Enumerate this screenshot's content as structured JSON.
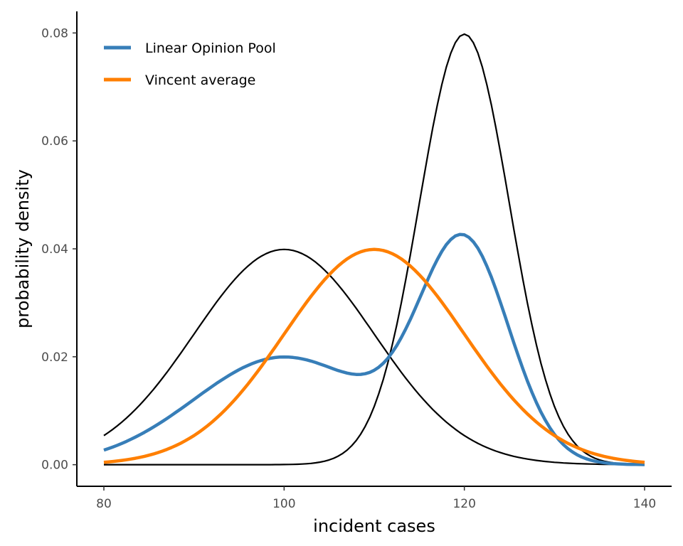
{
  "chart_data": {
    "type": "line",
    "xlabel": "incident cases",
    "ylabel": "probability density",
    "xlim": [
      77,
      143
    ],
    "ylim": [
      -0.004,
      0.084
    ],
    "x_ticks": [
      80,
      100,
      120,
      140
    ],
    "y_ticks": [
      0.0,
      0.02,
      0.04,
      0.06,
      0.08
    ],
    "x_tick_labels": [
      "80",
      "100",
      "120",
      "140"
    ],
    "y_tick_labels": [
      "0.00",
      "0.02",
      "0.04",
      "0.06",
      "0.08"
    ],
    "grid": false,
    "legend_position": "top-left",
    "x_range": [
      80,
      140
    ],
    "series": [
      {
        "name": "",
        "color": "#000000",
        "legend": false,
        "dist": "normal",
        "mean": 100,
        "sd": 10,
        "weight": 1
      },
      {
        "name": "",
        "color": "#000000",
        "legend": false,
        "dist": "normal",
        "mean": 120,
        "sd": 5,
        "weight": 1
      },
      {
        "name": "Linear Opinion Pool",
        "color": "#377eb8",
        "legend": true,
        "dist": "mixture",
        "components": [
          {
            "mean": 100,
            "sd": 10,
            "weight": 0.5
          },
          {
            "mean": 120,
            "sd": 5,
            "weight": 0.5
          }
        ]
      },
      {
        "name": "Vincent average",
        "color": "#ff7f00",
        "legend": true,
        "dist": "normal",
        "mean": 110,
        "sd": 10,
        "weight": 1
      }
    ]
  }
}
